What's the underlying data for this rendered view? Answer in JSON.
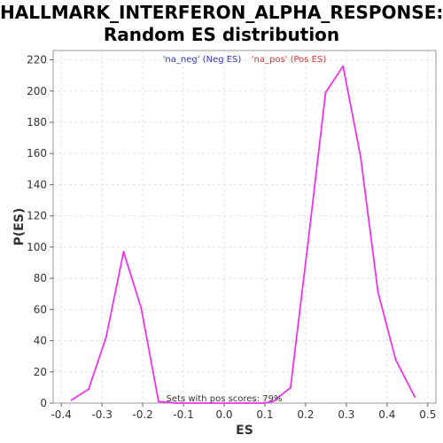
{
  "chart_data": {
    "type": "line",
    "title_line1": "HALLMARK_INTERFERON_ALPHA_RESPONSE:",
    "title_line2": "Random ES distribution",
    "xlabel": "ES",
    "ylabel": "P(ES)",
    "xlim": [
      -0.42,
      0.52
    ],
    "ylim": [
      0,
      226
    ],
    "xticks": [
      -0.4,
      -0.3,
      -0.2,
      -0.1,
      0.0,
      0.1,
      0.2,
      0.3,
      0.4,
      0.5
    ],
    "xtick_labels": [
      "-0.4",
      "-0.3",
      "-0.2",
      "-0.1",
      "0.0",
      "0.1",
      "0.2",
      "0.3",
      "0.4",
      "0.5"
    ],
    "yticks": [
      0,
      20,
      40,
      60,
      80,
      100,
      120,
      140,
      160,
      180,
      200,
      220
    ],
    "ytick_labels": [
      "0",
      "20",
      "40",
      "60",
      "80",
      "100",
      "120",
      "140",
      "160",
      "180",
      "200",
      "220"
    ],
    "grid": true,
    "legend": [
      {
        "label": "'na_neg' (Neg ES)",
        "color": "#3333cc"
      },
      {
        "label": "'na_pos' (Pos ES)",
        "color": "#dd3333"
      }
    ],
    "annotation": "Sets with pos scores: 79%",
    "series": [
      {
        "color": "#ee33ee",
        "x": [
          -0.375,
          -0.333,
          -0.29,
          -0.247,
          -0.204,
          -0.161,
          -0.118,
          -0.075,
          -0.032,
          0.011,
          0.054,
          0.097,
          0.12,
          0.163,
          0.206,
          0.249,
          0.292,
          0.335,
          0.378,
          0.421,
          0.468
        ],
        "y": [
          2,
          9,
          42,
          97,
          61,
          1,
          0,
          0,
          0,
          0,
          0,
          0,
          1,
          10,
          103,
          199,
          216,
          158,
          71,
          28,
          4
        ]
      }
    ]
  }
}
